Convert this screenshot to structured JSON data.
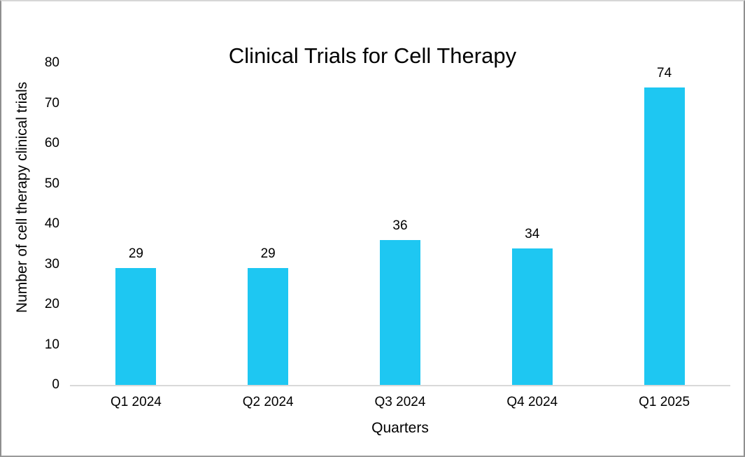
{
  "chart_data": {
    "type": "bar",
    "title": "Clinical Trials for Cell Therapy",
    "categories": [
      "Q1 2024",
      "Q2 2024",
      "Q3 2024",
      "Q4 2024",
      "Q1 2025"
    ],
    "values": [
      29,
      29,
      36,
      34,
      74
    ],
    "xlabel": "Quarters",
    "ylabel": "Number of cell therapy clinical trials",
    "ylim": [
      0,
      80
    ],
    "yticks": [
      0,
      10,
      20,
      30,
      40,
      50,
      60,
      70,
      80
    ],
    "grid": false,
    "legend": false,
    "data_labels_shown": true,
    "bar_color": "#1EC7F2",
    "axis_line_color": "#D9D9D9",
    "text_color": "#000000"
  }
}
